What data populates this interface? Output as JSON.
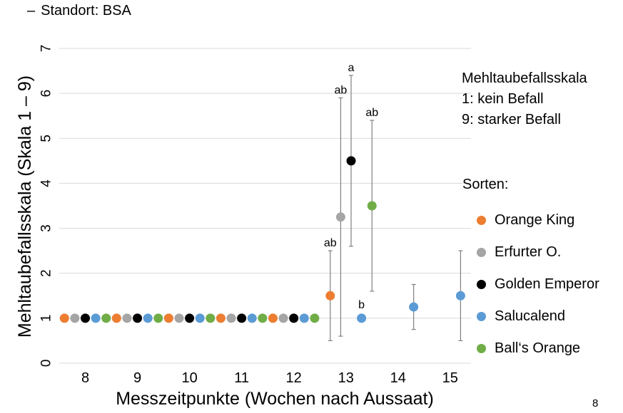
{
  "slide": {
    "bullet_dash": "–",
    "bullet_text": "Standort: BSA",
    "page_number": "8"
  },
  "scale_note": {
    "title": "Mehltaubefallsskala",
    "line1": "1: kein Befall",
    "line2": "9: starker Befall"
  },
  "legend": {
    "title": "Sorten:",
    "items": [
      {
        "label": "Orange King",
        "color": "#ed7d31"
      },
      {
        "label": "Erfurter O.",
        "color": "#a5a5a5"
      },
      {
        "label": "Golden Emperor",
        "color": "#000000"
      },
      {
        "label": "Salucalend",
        "color": "#5b9bd5"
      },
      {
        "label": "Ball‘s Orange",
        "color": "#70ad47"
      }
    ]
  },
  "chart_data": {
    "type": "scatter",
    "title": "",
    "xlabel": "Messzeitpunkte (Wochen nach Aussaat)",
    "ylabel": "Mehltaubefallsskala  (Skala 1 – 9)",
    "xlim": [
      7.5,
      15.4
    ],
    "ylim": [
      0,
      7
    ],
    "xticks": [
      8,
      9,
      10,
      11,
      12,
      13,
      14,
      15
    ],
    "yticks": [
      0,
      1,
      2,
      3,
      4,
      5,
      6,
      7
    ],
    "grid": "horizontal",
    "legend_position": "right",
    "series": [
      {
        "name": "Orange King",
        "color": "#ed7d31",
        "points": [
          {
            "x": 7.6,
            "y": 1
          },
          {
            "x": 8.6,
            "y": 1
          },
          {
            "x": 9.6,
            "y": 1
          },
          {
            "x": 10.6,
            "y": 1
          },
          {
            "x": 11.6,
            "y": 1
          },
          {
            "x": 12.7,
            "y": 1.5,
            "err_low": 0.5,
            "err_high": 2.5,
            "label": "ab"
          }
        ]
      },
      {
        "name": "Erfurter O.",
        "color": "#a5a5a5",
        "points": [
          {
            "x": 7.8,
            "y": 1
          },
          {
            "x": 8.8,
            "y": 1
          },
          {
            "x": 9.8,
            "y": 1
          },
          {
            "x": 10.8,
            "y": 1
          },
          {
            "x": 11.8,
            "y": 1
          },
          {
            "x": 12.9,
            "y": 3.25,
            "err_low": 0.6,
            "err_high": 5.9,
            "label": "ab"
          }
        ]
      },
      {
        "name": "Golden Emperor",
        "color": "#000000",
        "points": [
          {
            "x": 8.0,
            "y": 1
          },
          {
            "x": 9.0,
            "y": 1
          },
          {
            "x": 10.0,
            "y": 1
          },
          {
            "x": 11.0,
            "y": 1
          },
          {
            "x": 12.0,
            "y": 1
          },
          {
            "x": 13.1,
            "y": 4.5,
            "err_low": 2.6,
            "err_high": 6.4,
            "label": "a"
          }
        ]
      },
      {
        "name": "Salucalend",
        "color": "#5b9bd5",
        "points": [
          {
            "x": 8.2,
            "y": 1
          },
          {
            "x": 9.2,
            "y": 1
          },
          {
            "x": 10.2,
            "y": 1
          },
          {
            "x": 11.2,
            "y": 1
          },
          {
            "x": 12.2,
            "y": 1
          },
          {
            "x": 13.3,
            "y": 1,
            "label": "b"
          },
          {
            "x": 14.3,
            "y": 1.25,
            "err_low": 0.75,
            "err_high": 1.75
          },
          {
            "x": 15.2,
            "y": 1.5,
            "err_low": 0.5,
            "err_high": 2.5
          }
        ]
      },
      {
        "name": "Ball‘s Orange",
        "color": "#70ad47",
        "points": [
          {
            "x": 8.4,
            "y": 1
          },
          {
            "x": 9.4,
            "y": 1
          },
          {
            "x": 10.4,
            "y": 1
          },
          {
            "x": 11.4,
            "y": 1
          },
          {
            "x": 12.4,
            "y": 1
          },
          {
            "x": 13.5,
            "y": 3.5,
            "err_low": 1.6,
            "err_high": 5.4,
            "label": "ab"
          }
        ]
      }
    ]
  }
}
